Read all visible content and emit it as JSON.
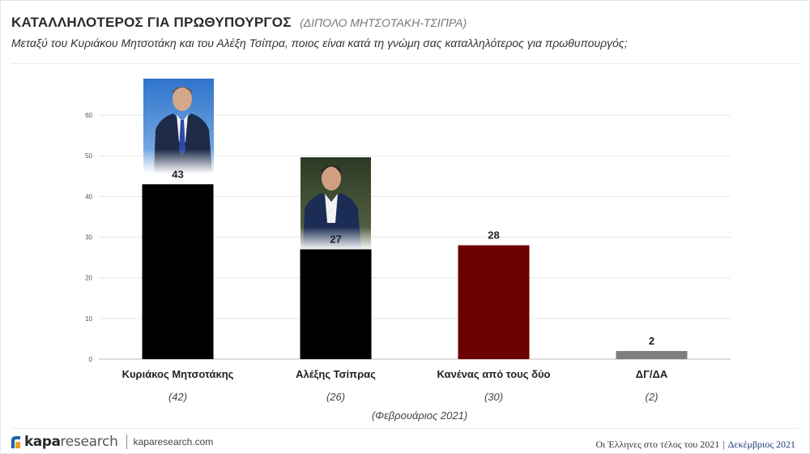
{
  "header": {
    "title": "ΚΑΤΑΛΛΗΛΟΤΕΡΟΣ ΓΙΑ ΠΡΩΘΥΠΟΥΡΓΟΣ",
    "title_note": "(ΔΙΠΟΛΟ ΜΗΤΣΟΤΑΚΗ-ΤΣΙΠΡΑ)",
    "subtitle": "Μεταξύ του Κυριάκου Μητσοτάκη και του Αλέξη Τσίπρα, ποιος είναι κατά τη γνώμη σας καταλληλότερος για πρωθυπουργός;"
  },
  "chart_data": {
    "type": "bar",
    "categories": [
      "Κυριάκος Μητσοτάκης",
      "Αλέξης Τσίπρας",
      "Κανένας από τους δύο",
      "ΔΓ/ΔΑ"
    ],
    "values": [
      43,
      27,
      28,
      2
    ],
    "previous_values": [
      "(42)",
      "(26)",
      "(30)",
      "(2)"
    ],
    "previous_label": "(Φεβρουάριος 2021)",
    "ylim": [
      0,
      60
    ],
    "yticks": [
      0,
      10,
      20,
      30,
      40,
      50,
      60
    ],
    "grid": true,
    "colors": [
      "#000000",
      "#000000",
      "#6b0000",
      "#7f7f7f"
    ]
  },
  "footer": {
    "brand_bold": "kapa",
    "brand_light": "research",
    "url": "kaparesearch.com",
    "survey": "Οι Έλληνες στο τέλος του 2021",
    "separator": "|",
    "date": "Δεκέμβριος 2021"
  }
}
